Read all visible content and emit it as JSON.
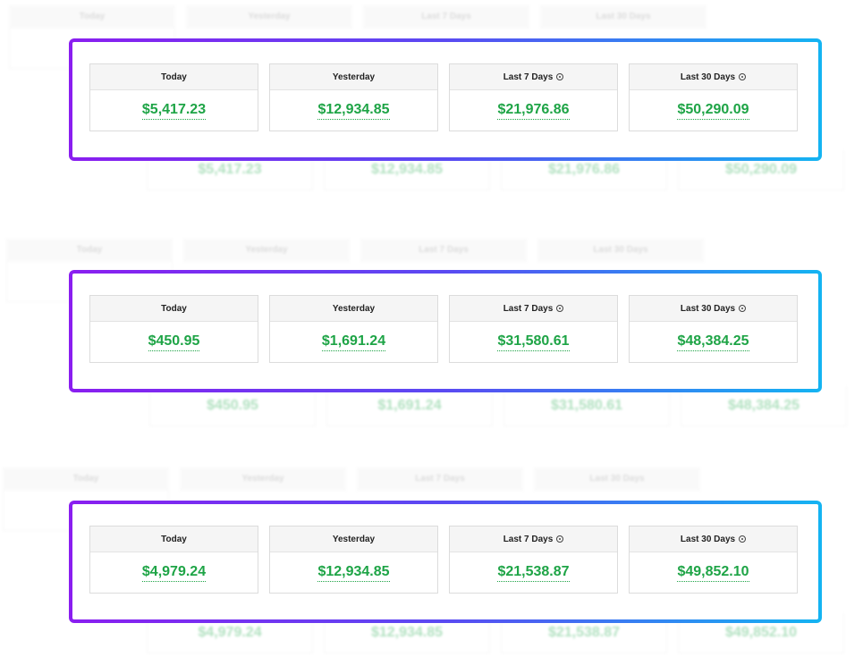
{
  "labels": {
    "today": "Today",
    "yesterday": "Yesterday",
    "last7": "Last 7 Days",
    "last30": "Last 30 Days"
  },
  "icons": {
    "info": "info-circle-icon"
  },
  "colors": {
    "amount": "#1ea446",
    "frame_start": "#8a1ef0",
    "frame_end": "#14b4f2"
  },
  "panels": [
    {
      "today": "$5,417.23",
      "yesterday": "$12,934.85",
      "last7": "$21,976.86",
      "last30": "$50,290.09"
    },
    {
      "today": "$450.95",
      "yesterday": "$1,691.24",
      "last7": "$31,580.61",
      "last30": "$48,384.25"
    },
    {
      "today": "$4,979.24",
      "yesterday": "$12,934.85",
      "last7": "$21,538.87",
      "last30": "$49,852.10"
    }
  ]
}
